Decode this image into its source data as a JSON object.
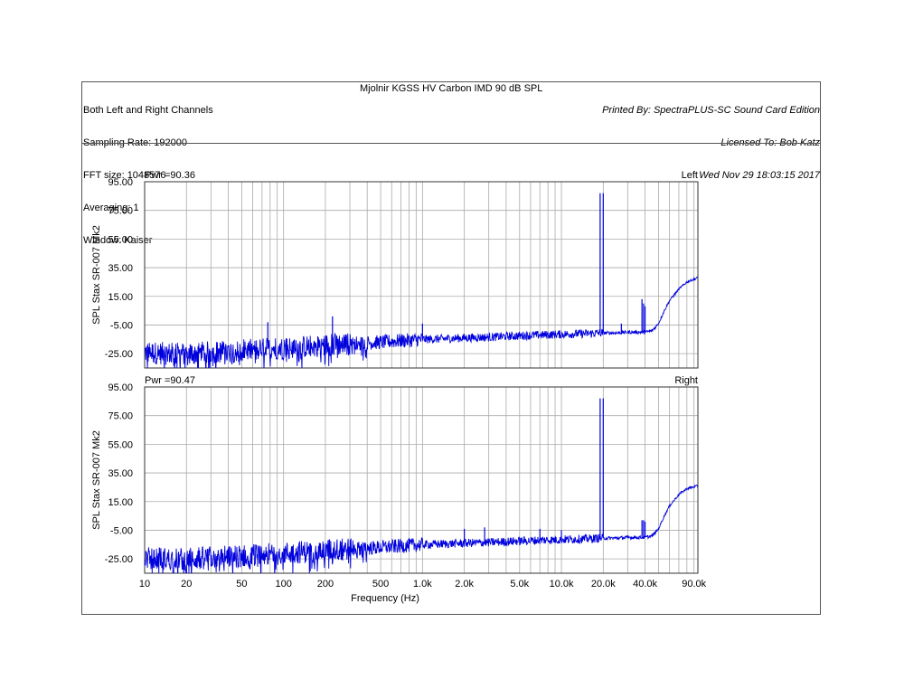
{
  "header": {
    "left_lines": [
      "Both Left and Right Channels",
      "Sampling Rate: 192000",
      "FFT size: 1048576",
      "Averaging: 1",
      "Window: Kaiser"
    ],
    "title": "Mjolnir KGSS HV Carbon IMD 90 dB SPL",
    "right_lines": [
      "Printed By: SpectraPLUS-SC Sound Card Edition",
      "Licensed To: Bob Katz",
      "Wed Nov 29 18:03:15 2017"
    ]
  },
  "colors": {
    "trace": "#0000dd",
    "grid": "#aaaaaa",
    "frame": "#555555"
  },
  "chart_data": [
    {
      "type": "line",
      "panel": "top",
      "channel_label": "Left",
      "pwr_label": "Pwr =90.36",
      "ylabel": "SPL Stax SR-007 Mk2",
      "xscale": "log",
      "xlim": [
        10,
        96000
      ],
      "ylim": [
        -35,
        95
      ],
      "yticks": [
        95,
        75,
        55,
        35,
        15,
        -5,
        -25
      ],
      "ytick_labels": [
        "95.00",
        "75.00",
        "55.00",
        "35.00",
        "15.00",
        "-5.00",
        "-25.00"
      ],
      "series": [
        {
          "x": [
            10,
            15,
            20,
            30,
            50,
            70,
            100,
            150,
            200,
            300,
            500,
            700,
            1000,
            1500,
            2000,
            3000,
            5000,
            7000,
            10000,
            15000,
            19000,
            20000,
            25000,
            30000,
            36000,
            40000,
            45000,
            50000,
            55000,
            60000,
            70000,
            80000,
            96000
          ],
          "y": [
            -24,
            -25,
            -25,
            -24,
            -23,
            -22,
            -21,
            -20,
            -19,
            -18,
            -17,
            -16,
            -15,
            -14.5,
            -14,
            -13.5,
            -12.5,
            -12,
            -11.5,
            -11,
            -10.5,
            -10.5,
            -10.5,
            -10,
            -10,
            -10,
            -9,
            -4,
            5,
            12,
            20,
            25,
            28
          ]
        }
      ],
      "spikes": [
        {
          "x": 19000,
          "y": 87
        },
        {
          "x": 20000,
          "y": 87
        },
        {
          "x": 38000,
          "y": 13
        },
        {
          "x": 39000,
          "y": 10
        },
        {
          "x": 40000,
          "y": 8
        },
        {
          "x": 77,
          "y": -3
        },
        {
          "x": 225,
          "y": 1
        },
        {
          "x": 1000,
          "y": -4
        },
        {
          "x": 27000,
          "y": -4
        }
      ]
    },
    {
      "type": "line",
      "panel": "bottom",
      "channel_label": "Right",
      "pwr_label": "Pwr =90.47",
      "ylabel": "SPL Stax SR-007 Mk2",
      "xlabel": "Frequency (Hz)",
      "xscale": "log",
      "xlim": [
        10,
        96000
      ],
      "ylim": [
        -35,
        95
      ],
      "yticks": [
        95,
        75,
        55,
        35,
        15,
        -5,
        -25
      ],
      "ytick_labels": [
        "95.00",
        "75.00",
        "55.00",
        "35.00",
        "15.00",
        "-5.00",
        "-25.00"
      ],
      "xticks": [
        10,
        20,
        50,
        100,
        200,
        500,
        1000,
        2000,
        5000,
        10000,
        20000,
        40000,
        90000
      ],
      "xtick_labels": [
        "10",
        "20",
        "50",
        "100",
        "200",
        "500",
        "1.0k",
        "2.0k",
        "5.0k",
        "10.0k",
        "20.0k",
        "40.0k",
        "90.0k"
      ],
      "series": [
        {
          "x": [
            10,
            15,
            20,
            30,
            50,
            70,
            100,
            150,
            200,
            300,
            500,
            700,
            1000,
            1500,
            2000,
            3000,
            5000,
            7000,
            10000,
            15000,
            19000,
            20000,
            25000,
            30000,
            36000,
            40000,
            45000,
            50000,
            55000,
            60000,
            70000,
            80000,
            96000
          ],
          "y": [
            -24,
            -25,
            -25,
            -24,
            -23,
            -22,
            -21,
            -20,
            -19,
            -18,
            -17,
            -16,
            -15,
            -14.5,
            -14,
            -13.5,
            -12.5,
            -12,
            -11.5,
            -11,
            -10.5,
            -10.5,
            -10.5,
            -10,
            -10,
            -10,
            -9,
            -4,
            5,
            12,
            20,
            24,
            26
          ]
        }
      ],
      "spikes": [
        {
          "x": 19000,
          "y": 87
        },
        {
          "x": 20000,
          "y": 87
        },
        {
          "x": 38000,
          "y": 2
        },
        {
          "x": 39000,
          "y": 2
        },
        {
          "x": 40000,
          "y": 1
        },
        {
          "x": 2000,
          "y": -4
        },
        {
          "x": 2800,
          "y": -3
        },
        {
          "x": 7000,
          "y": -4
        },
        {
          "x": 10000,
          "y": -5
        }
      ]
    }
  ]
}
